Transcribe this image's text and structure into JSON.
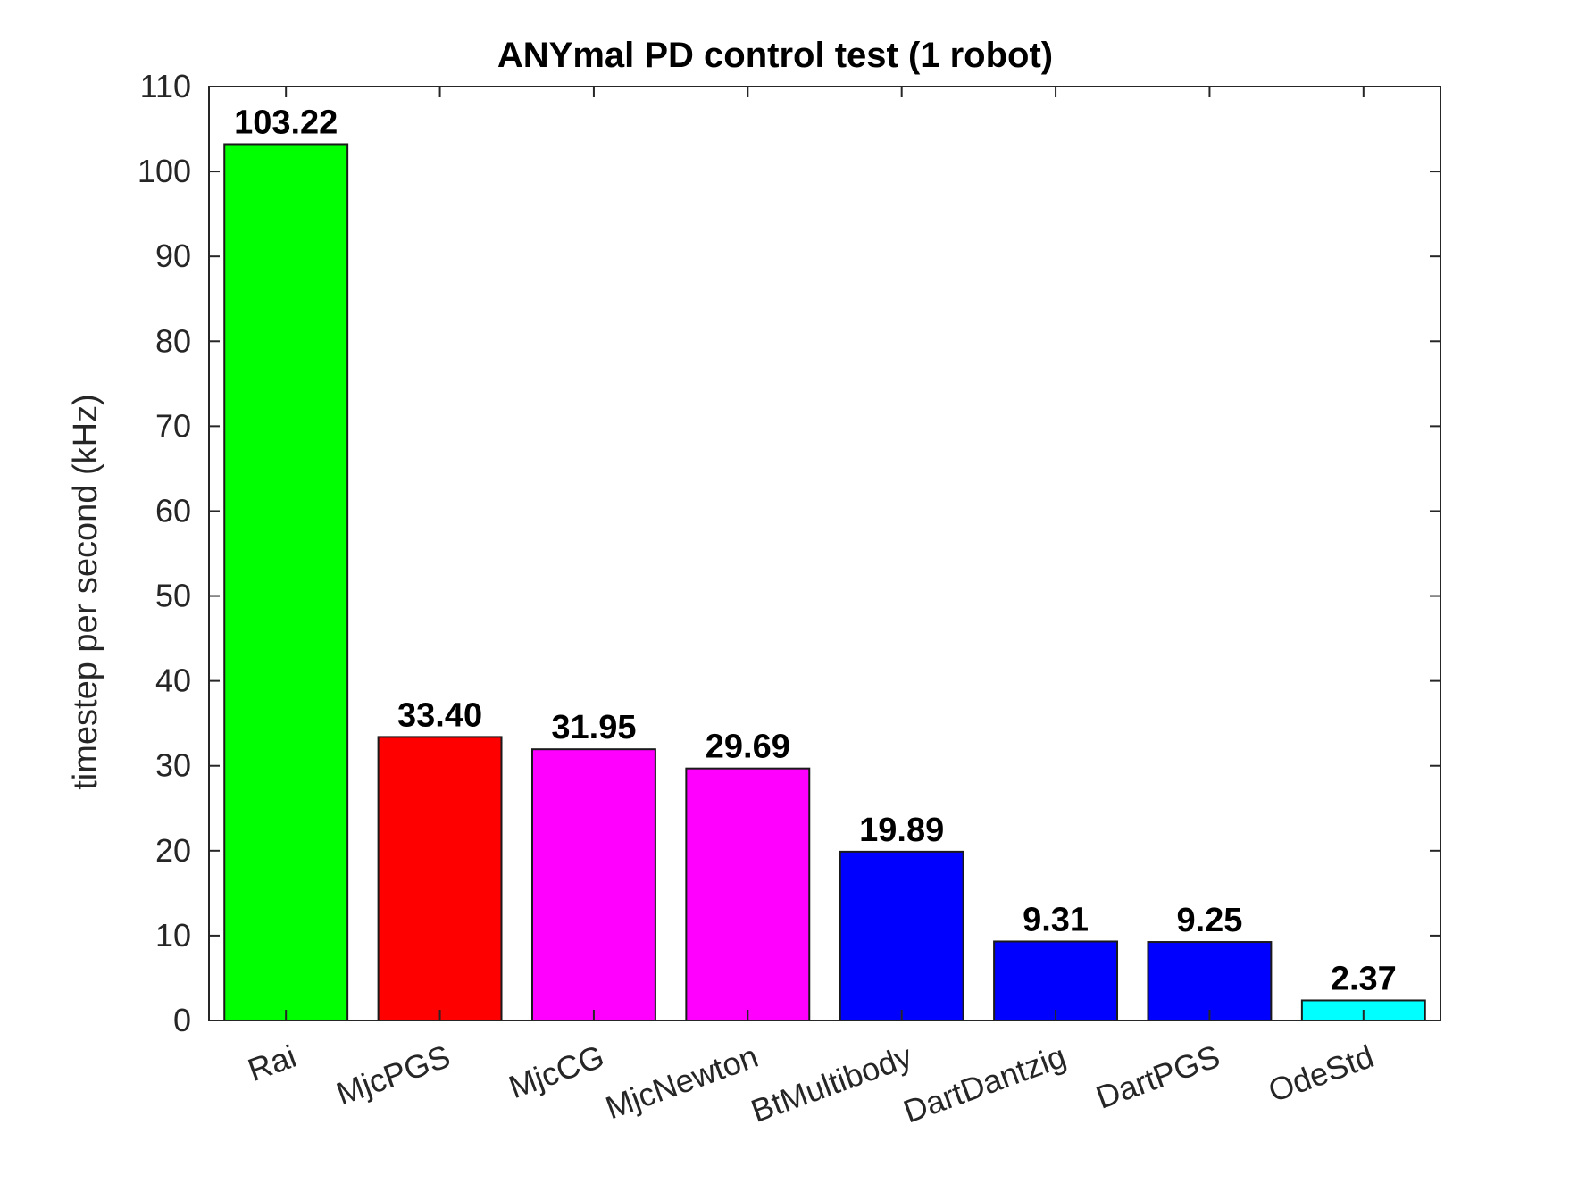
{
  "chart_data": {
    "type": "bar",
    "title": "ANYmal PD control test (1 robot)",
    "xlabel": "",
    "ylabel": "timestep per second (kHz)",
    "ylim": [
      0,
      110
    ],
    "yticks": [
      0,
      10,
      20,
      30,
      40,
      50,
      60,
      70,
      80,
      90,
      100,
      110
    ],
    "grid": false,
    "categories": [
      "Rai",
      "MjcPGS",
      "MjcCG",
      "MjcNewton",
      "BtMultibody",
      "DartDantzig",
      "DartPGS",
      "OdeStd"
    ],
    "values": [
      103.22,
      33.4,
      31.95,
      29.69,
      19.89,
      9.31,
      9.25,
      2.37
    ],
    "value_labels": [
      "103.22",
      "33.40",
      "31.95",
      "29.69",
      "19.89",
      "9.31",
      "9.25",
      "2.37"
    ],
    "colors": [
      "#00ff00",
      "#ff0000",
      "#ff00ff",
      "#ff00ff",
      "#0000ff",
      "#0000ff",
      "#0000ff",
      "#00ffff"
    ]
  }
}
